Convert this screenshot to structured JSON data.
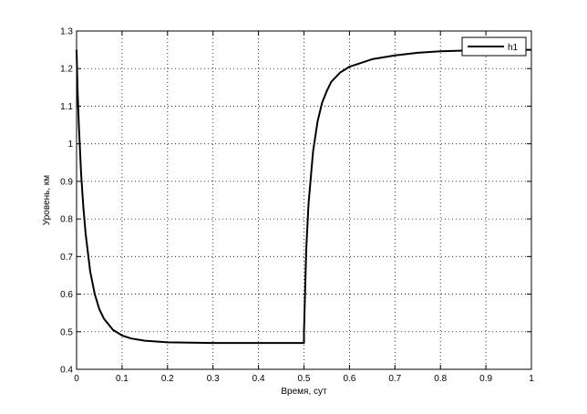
{
  "chart_data": {
    "type": "line",
    "xlabel": "Время, сут",
    "ylabel": "Уровень, км",
    "xlim": [
      0,
      1
    ],
    "ylim": [
      0.4,
      1.3
    ],
    "x_ticks": [
      0,
      0.1,
      0.2,
      0.3,
      0.4,
      0.5,
      0.6,
      0.7,
      0.8,
      0.9,
      1
    ],
    "x_tick_labels": [
      "0",
      "0.1",
      "0.2",
      "0.3",
      "0.4",
      "0.5",
      "0.6",
      "0.7",
      "0.8",
      "0.9",
      "1"
    ],
    "y_ticks": [
      0.4,
      0.5,
      0.6,
      0.7,
      0.8,
      0.9,
      1.0,
      1.1,
      1.2,
      1.3
    ],
    "y_tick_labels": [
      "0.4",
      "0.5",
      "0.6",
      "0.7",
      "0.8",
      "0.9",
      "1",
      "1.1",
      "1.2",
      "1.3"
    ],
    "grid": true,
    "legend": "top-right",
    "series": [
      {
        "name": "h1",
        "color": "#000000",
        "x": [
          0,
          0.002,
          0.005,
          0.01,
          0.015,
          0.02,
          0.03,
          0.04,
          0.05,
          0.06,
          0.08,
          0.1,
          0.12,
          0.15,
          0.2,
          0.25,
          0.3,
          0.4,
          0.5,
          0.5,
          0.505,
          0.51,
          0.52,
          0.53,
          0.54,
          0.55,
          0.56,
          0.58,
          0.6,
          0.65,
          0.7,
          0.75,
          0.8,
          0.85,
          0.9,
          0.95,
          1.0
        ],
        "values": [
          1.25,
          1.15,
          1.05,
          0.92,
          0.83,
          0.76,
          0.66,
          0.6,
          0.56,
          0.535,
          0.505,
          0.49,
          0.482,
          0.476,
          0.472,
          0.471,
          0.47,
          0.47,
          0.47,
          0.5,
          0.72,
          0.84,
          0.98,
          1.06,
          1.11,
          1.14,
          1.165,
          1.19,
          1.205,
          1.225,
          1.235,
          1.242,
          1.246,
          1.248,
          1.25,
          1.25,
          1.25
        ]
      }
    ]
  }
}
